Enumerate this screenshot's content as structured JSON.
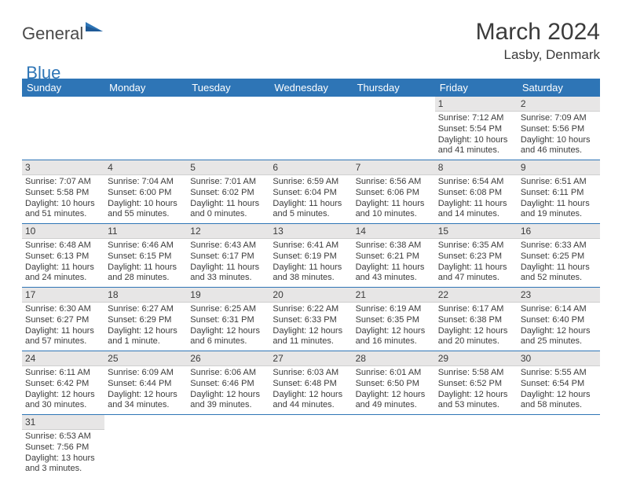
{
  "brand": {
    "word1": "General",
    "word2": "Blue"
  },
  "title": "March 2024",
  "location": "Lasby, Denmark",
  "colors": {
    "header_bg": "#2e75b6",
    "header_text": "#ffffff",
    "daynum_bg": "#e7e6e6",
    "row_border": "#2e75b6",
    "text": "#3b3b3b"
  },
  "weekdays": [
    "Sunday",
    "Monday",
    "Tuesday",
    "Wednesday",
    "Thursday",
    "Friday",
    "Saturday"
  ],
  "weeks": [
    [
      null,
      null,
      null,
      null,
      null,
      {
        "n": "1",
        "sr": "Sunrise: 7:12 AM",
        "ss": "Sunset: 5:54 PM",
        "d1": "Daylight: 10 hours",
        "d2": "and 41 minutes."
      },
      {
        "n": "2",
        "sr": "Sunrise: 7:09 AM",
        "ss": "Sunset: 5:56 PM",
        "d1": "Daylight: 10 hours",
        "d2": "and 46 minutes."
      }
    ],
    [
      {
        "n": "3",
        "sr": "Sunrise: 7:07 AM",
        "ss": "Sunset: 5:58 PM",
        "d1": "Daylight: 10 hours",
        "d2": "and 51 minutes."
      },
      {
        "n": "4",
        "sr": "Sunrise: 7:04 AM",
        "ss": "Sunset: 6:00 PM",
        "d1": "Daylight: 10 hours",
        "d2": "and 55 minutes."
      },
      {
        "n": "5",
        "sr": "Sunrise: 7:01 AM",
        "ss": "Sunset: 6:02 PM",
        "d1": "Daylight: 11 hours",
        "d2": "and 0 minutes."
      },
      {
        "n": "6",
        "sr": "Sunrise: 6:59 AM",
        "ss": "Sunset: 6:04 PM",
        "d1": "Daylight: 11 hours",
        "d2": "and 5 minutes."
      },
      {
        "n": "7",
        "sr": "Sunrise: 6:56 AM",
        "ss": "Sunset: 6:06 PM",
        "d1": "Daylight: 11 hours",
        "d2": "and 10 minutes."
      },
      {
        "n": "8",
        "sr": "Sunrise: 6:54 AM",
        "ss": "Sunset: 6:08 PM",
        "d1": "Daylight: 11 hours",
        "d2": "and 14 minutes."
      },
      {
        "n": "9",
        "sr": "Sunrise: 6:51 AM",
        "ss": "Sunset: 6:11 PM",
        "d1": "Daylight: 11 hours",
        "d2": "and 19 minutes."
      }
    ],
    [
      {
        "n": "10",
        "sr": "Sunrise: 6:48 AM",
        "ss": "Sunset: 6:13 PM",
        "d1": "Daylight: 11 hours",
        "d2": "and 24 minutes."
      },
      {
        "n": "11",
        "sr": "Sunrise: 6:46 AM",
        "ss": "Sunset: 6:15 PM",
        "d1": "Daylight: 11 hours",
        "d2": "and 28 minutes."
      },
      {
        "n": "12",
        "sr": "Sunrise: 6:43 AM",
        "ss": "Sunset: 6:17 PM",
        "d1": "Daylight: 11 hours",
        "d2": "and 33 minutes."
      },
      {
        "n": "13",
        "sr": "Sunrise: 6:41 AM",
        "ss": "Sunset: 6:19 PM",
        "d1": "Daylight: 11 hours",
        "d2": "and 38 minutes."
      },
      {
        "n": "14",
        "sr": "Sunrise: 6:38 AM",
        "ss": "Sunset: 6:21 PM",
        "d1": "Daylight: 11 hours",
        "d2": "and 43 minutes."
      },
      {
        "n": "15",
        "sr": "Sunrise: 6:35 AM",
        "ss": "Sunset: 6:23 PM",
        "d1": "Daylight: 11 hours",
        "d2": "and 47 minutes."
      },
      {
        "n": "16",
        "sr": "Sunrise: 6:33 AM",
        "ss": "Sunset: 6:25 PM",
        "d1": "Daylight: 11 hours",
        "d2": "and 52 minutes."
      }
    ],
    [
      {
        "n": "17",
        "sr": "Sunrise: 6:30 AM",
        "ss": "Sunset: 6:27 PM",
        "d1": "Daylight: 11 hours",
        "d2": "and 57 minutes."
      },
      {
        "n": "18",
        "sr": "Sunrise: 6:27 AM",
        "ss": "Sunset: 6:29 PM",
        "d1": "Daylight: 12 hours",
        "d2": "and 1 minute."
      },
      {
        "n": "19",
        "sr": "Sunrise: 6:25 AM",
        "ss": "Sunset: 6:31 PM",
        "d1": "Daylight: 12 hours",
        "d2": "and 6 minutes."
      },
      {
        "n": "20",
        "sr": "Sunrise: 6:22 AM",
        "ss": "Sunset: 6:33 PM",
        "d1": "Daylight: 12 hours",
        "d2": "and 11 minutes."
      },
      {
        "n": "21",
        "sr": "Sunrise: 6:19 AM",
        "ss": "Sunset: 6:35 PM",
        "d1": "Daylight: 12 hours",
        "d2": "and 16 minutes."
      },
      {
        "n": "22",
        "sr": "Sunrise: 6:17 AM",
        "ss": "Sunset: 6:38 PM",
        "d1": "Daylight: 12 hours",
        "d2": "and 20 minutes."
      },
      {
        "n": "23",
        "sr": "Sunrise: 6:14 AM",
        "ss": "Sunset: 6:40 PM",
        "d1": "Daylight: 12 hours",
        "d2": "and 25 minutes."
      }
    ],
    [
      {
        "n": "24",
        "sr": "Sunrise: 6:11 AM",
        "ss": "Sunset: 6:42 PM",
        "d1": "Daylight: 12 hours",
        "d2": "and 30 minutes."
      },
      {
        "n": "25",
        "sr": "Sunrise: 6:09 AM",
        "ss": "Sunset: 6:44 PM",
        "d1": "Daylight: 12 hours",
        "d2": "and 34 minutes."
      },
      {
        "n": "26",
        "sr": "Sunrise: 6:06 AM",
        "ss": "Sunset: 6:46 PM",
        "d1": "Daylight: 12 hours",
        "d2": "and 39 minutes."
      },
      {
        "n": "27",
        "sr": "Sunrise: 6:03 AM",
        "ss": "Sunset: 6:48 PM",
        "d1": "Daylight: 12 hours",
        "d2": "and 44 minutes."
      },
      {
        "n": "28",
        "sr": "Sunrise: 6:01 AM",
        "ss": "Sunset: 6:50 PM",
        "d1": "Daylight: 12 hours",
        "d2": "and 49 minutes."
      },
      {
        "n": "29",
        "sr": "Sunrise: 5:58 AM",
        "ss": "Sunset: 6:52 PM",
        "d1": "Daylight: 12 hours",
        "d2": "and 53 minutes."
      },
      {
        "n": "30",
        "sr": "Sunrise: 5:55 AM",
        "ss": "Sunset: 6:54 PM",
        "d1": "Daylight: 12 hours",
        "d2": "and 58 minutes."
      }
    ],
    [
      {
        "n": "31",
        "sr": "Sunrise: 6:53 AM",
        "ss": "Sunset: 7:56 PM",
        "d1": "Daylight: 13 hours",
        "d2": "and 3 minutes."
      },
      null,
      null,
      null,
      null,
      null,
      null
    ]
  ]
}
